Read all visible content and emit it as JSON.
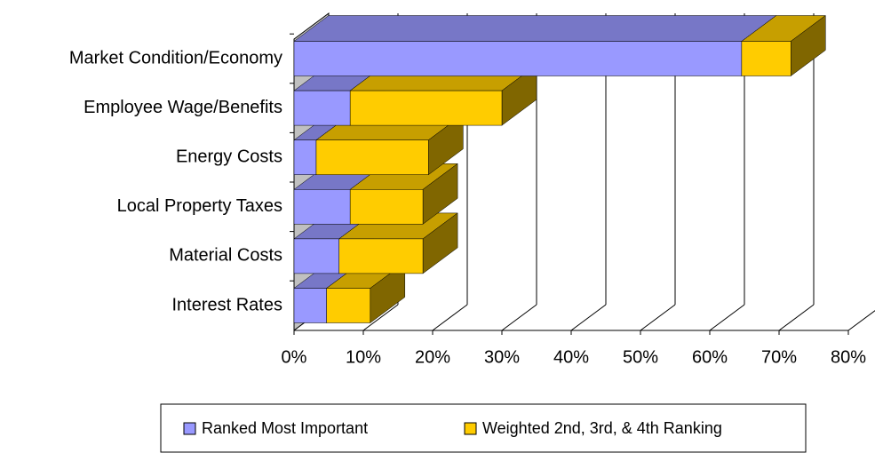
{
  "chart_data": {
    "type": "bar3d-stacked-horizontal",
    "categories": [
      "Market Condition/Economy",
      "Employee Wage/Benefits",
      "Energy Costs",
      "Local Property Taxes",
      "Material Costs",
      "Interest Rates"
    ],
    "series": [
      {
        "name": "Ranked Most Important",
        "color": "#9999ff",
        "values": [
          64.6,
          8.1,
          3.2,
          8.1,
          6.5,
          4.7
        ]
      },
      {
        "name": "Weighted 2nd, 3rd, & 4th Ranking",
        "color": "#ffcc00",
        "values": [
          7.1,
          21.9,
          16.2,
          10.5,
          12.1,
          6.3
        ]
      }
    ],
    "xlim": [
      0,
      80
    ],
    "xticks": [
      {
        "value": 0,
        "label": "0%"
      },
      {
        "value": 10,
        "label": "10%"
      },
      {
        "value": 20,
        "label": "20%"
      },
      {
        "value": 30,
        "label": "30%"
      },
      {
        "value": 40,
        "label": "40%"
      },
      {
        "value": 50,
        "label": "50%"
      },
      {
        "value": 60,
        "label": "60%"
      },
      {
        "value": 70,
        "label": "70%"
      },
      {
        "value": 80,
        "label": "80%"
      }
    ],
    "grid": true
  }
}
